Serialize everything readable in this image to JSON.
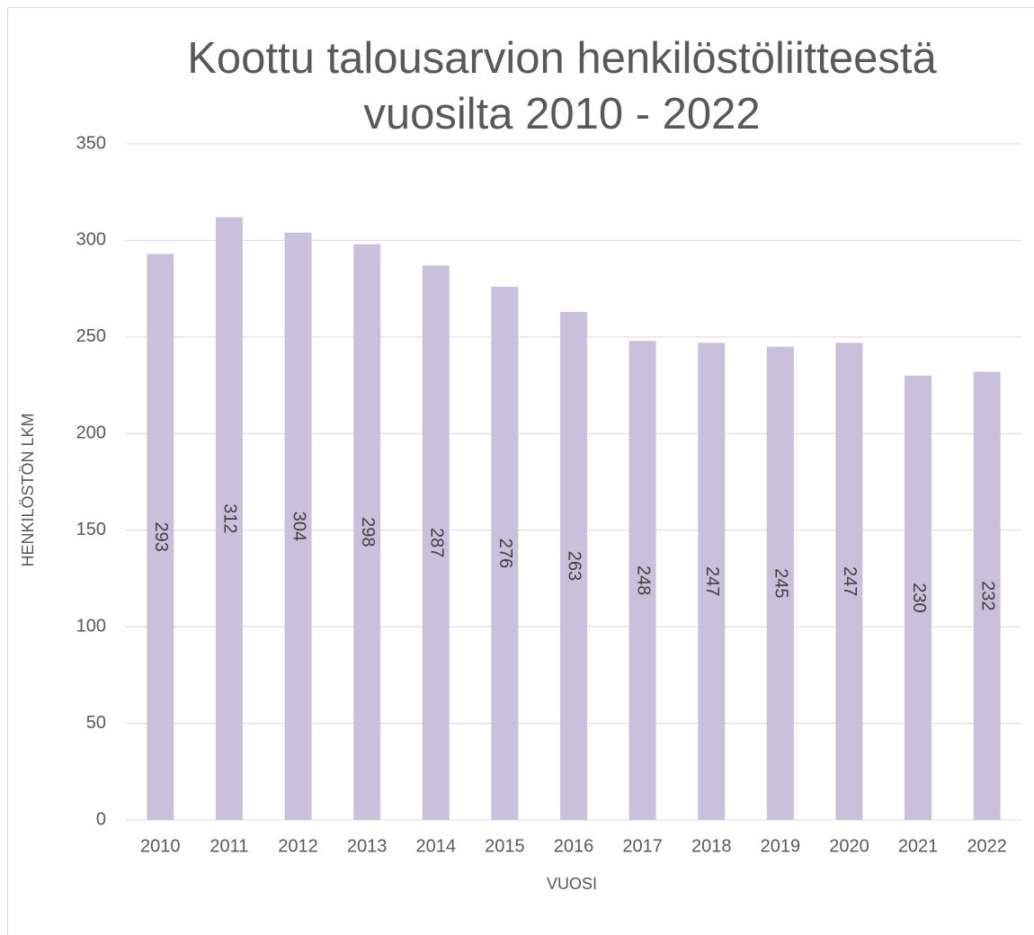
{
  "chart_data": {
    "type": "bar",
    "title": "Koottu talousarvion henkilöstöliitteestä vuosilta 2010 - 2022",
    "x_label": "VUOSI",
    "y_label": "HENKILÖSTÖN LKM",
    "categories": [
      "2010",
      "2011",
      "2012",
      "2013",
      "2014",
      "2015",
      "2016",
      "2017",
      "2018",
      "2019",
      "2020",
      "2021",
      "2022"
    ],
    "values": [
      293,
      312,
      304,
      298,
      287,
      276,
      263,
      248,
      247,
      245,
      247,
      230,
      232
    ],
    "color": "#c9c1dc",
    "ylim": [
      0,
      350
    ],
    "yticks": [
      0,
      50,
      100,
      150,
      200,
      250,
      300,
      350
    ],
    "grid": true
  }
}
